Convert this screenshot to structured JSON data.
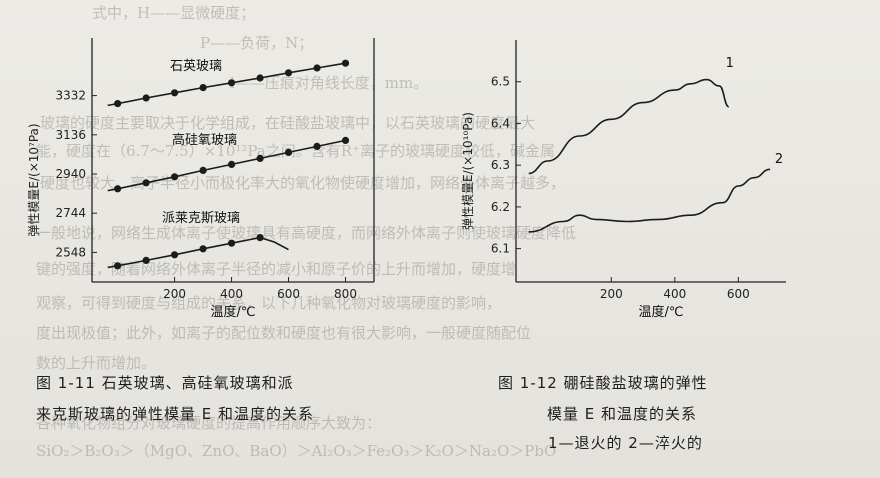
{
  "background_text": [
    "式中，H——显微硬度；",
    "P——负荷，N；",
    "l——压痕对角线长度，mm。",
    "玻璃的硬度主要取决于化学组成，在硅酸盐玻璃中，以石英玻璃的硬度最大",
    "能，硬度在（6.7～7.5）×10¹²Pa之间。含有R⁺离子的玻璃硬度较低，碱金属",
    "硬度也较大。离子半径小而极化率大的氧化物使硬度增加，网络外体离子越多，",
    "一般地说，网络生成体离子使玻璃具有高硬度，而网络外体离子则使玻璃硬度降低",
    "键的强度，随着网络外体离子半径的减小和原子价的上升而增加，硬度增",
    "观察，可得到硬度与组成的关系，以下几种氧化物对玻璃硬度的影响，",
    "度出现极值；此外，如离子的配位数和硬度也有很大影响，一般硬度随配位",
    "数的上升而增加。",
    "各种氧化物组分对玻璃硬度的提高作用顺序大致为：",
    "SiO₂＞B₂O₃＞（MgO、ZnO、BaO）＞Al₂O₃＞Fe₂O₃＞K₂O＞Na₂O＞PbO"
  ],
  "captions": {
    "fig11_line1": "图 1-11   石英玻璃、高硅氧玻璃和派",
    "fig11_line2": "来克斯玻璃的弹性模量 E 和温度的关系",
    "fig12_line1": "图 1-12   硼硅酸盐玻璃的弹性",
    "fig12_line2": "模量 E 和温度的关系",
    "fig12_line3": "1—退火的   2—淬火的"
  },
  "chart_data": [
    {
      "type": "line",
      "xlabel": "温度/℃",
      "ylabel": "弹性模量E/(×10⁷Pa)",
      "x_ticks": [
        200,
        400,
        600,
        800
      ],
      "y_ticks": [
        2548,
        2744,
        2940,
        3136,
        3332
      ],
      "xlim": [
        -90,
        900
      ],
      "ylim": [
        2400,
        3620
      ],
      "series": [
        {
          "name": "石英玻璃",
          "x": [
            0,
            100,
            200,
            300,
            400,
            500,
            600,
            700,
            800
          ],
          "y": [
            3292,
            3320,
            3346,
            3372,
            3396,
            3420,
            3446,
            3470,
            3494
          ],
          "markers": true
        },
        {
          "name": "高硅氧玻璃",
          "x": [
            0,
            100,
            200,
            300,
            400,
            500,
            600,
            700,
            800
          ],
          "y": [
            2866,
            2896,
            2926,
            2958,
            2988,
            3018,
            3048,
            3078,
            3108
          ],
          "markers": true
        },
        {
          "name": "派莱克斯玻璃",
          "x": [
            0,
            100,
            200,
            300,
            400,
            500,
            550,
            600
          ],
          "y": [
            2481,
            2508,
            2536,
            2566,
            2594,
            2622,
            2600,
            2562
          ],
          "markers": true,
          "marker_count": 6
        }
      ]
    },
    {
      "type": "line",
      "xlabel": "温度/℃",
      "ylabel": "弹性模量E/(×10¹⁰Pa)",
      "x_ticks": [
        200,
        400,
        600
      ],
      "y_ticks": [
        6.1,
        6.2,
        6.3,
        6.4,
        6.5
      ],
      "xlim": [
        -100,
        750
      ],
      "ylim": [
        6.02,
        6.6
      ],
      "series": [
        {
          "name": "1",
          "x": [
            -60,
            0,
            100,
            200,
            300,
            400,
            450,
            500,
            540,
            570
          ],
          "y": [
            6.28,
            6.31,
            6.37,
            6.41,
            6.45,
            6.48,
            6.495,
            6.505,
            6.49,
            6.44
          ]
        },
        {
          "name": "2",
          "x": [
            -60,
            50,
            100,
            150,
            250,
            350,
            450,
            550,
            600,
            650,
            700
          ],
          "y": [
            6.14,
            6.165,
            6.18,
            6.17,
            6.165,
            6.17,
            6.18,
            6.21,
            6.25,
            6.27,
            6.29
          ]
        }
      ]
    }
  ]
}
